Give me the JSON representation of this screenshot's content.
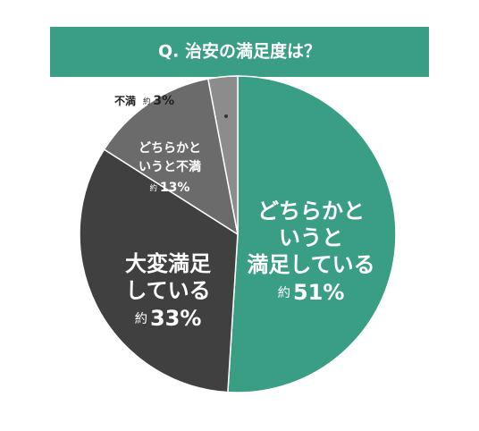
{
  "chart_data": {
    "type": "pie",
    "title": "Q. 治安の満足度は？",
    "categories": [
      "どちらかと\nいうと\n満足している",
      "大変満足\nしている",
      "どちらかと\nいうと不満",
      "不満"
    ],
    "values": [
      51,
      33,
      13,
      3
    ],
    "value_labels": [
      "約51%",
      "約33%",
      "約13%",
      "約3%"
    ],
    "colors": [
      "#3a9e84",
      "#404040",
      "#6b6b6b",
      "#8c8c8c"
    ]
  }
}
